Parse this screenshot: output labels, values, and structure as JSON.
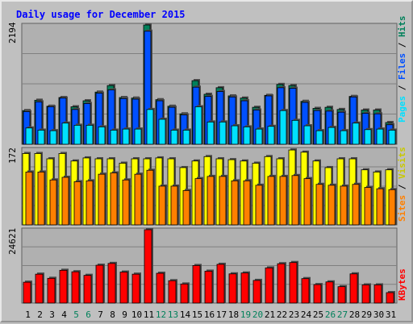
{
  "chart_data": [
    {
      "type": "bar",
      "title": "Daily usage for December 2015",
      "panel": "top",
      "y_tick_label": "2194",
      "ylim": [
        0,
        2194
      ],
      "categories": [
        "1",
        "2",
        "3",
        "4",
        "5",
        "6",
        "7",
        "8",
        "9",
        "10",
        "11",
        "12",
        "13",
        "14",
        "15",
        "16",
        "17",
        "18",
        "19",
        "20",
        "21",
        "22",
        "23",
        "24",
        "25",
        "26",
        "27",
        "28",
        "29",
        "30",
        "31"
      ],
      "series": [
        {
          "name": "Hits",
          "values": [
            620,
            810,
            700,
            860,
            690,
            800,
            960,
            1080,
            860,
            850,
            2194,
            820,
            700,
            560,
            1170,
            920,
            1040,
            890,
            850,
            680,
            900,
            1100,
            1080,
            790,
            660,
            680,
            640,
            880,
            630,
            630,
            400
          ]
        },
        {
          "name": "Files",
          "values": [
            600,
            780,
            690,
            850,
            640,
            750,
            940,
            1000,
            840,
            830,
            2080,
            800,
            680,
            540,
            1050,
            880,
            970,
            870,
            800,
            630,
            890,
            1040,
            1030,
            770,
            620,
            610,
            590,
            870,
            570,
            560,
            360
          ]
        },
        {
          "name": "Pages",
          "values": [
            300,
            260,
            250,
            390,
            350,
            350,
            320,
            260,
            280,
            280,
            640,
            460,
            260,
            260,
            690,
            410,
            410,
            340,
            320,
            280,
            330,
            620,
            440,
            340,
            250,
            310,
            250,
            390,
            270,
            280,
            260
          ]
        }
      ],
      "legend": [
        "Pages",
        "Files",
        "Hits"
      ],
      "legend_colors": [
        "#00e0ff",
        "#0050ff",
        "#00805a"
      ]
    },
    {
      "type": "bar",
      "panel": "middle",
      "y_tick_label": "172",
      "ylim": [
        0,
        172
      ],
      "categories": [
        "1",
        "2",
        "3",
        "4",
        "5",
        "6",
        "7",
        "8",
        "9",
        "10",
        "11",
        "12",
        "13",
        "14",
        "15",
        "16",
        "17",
        "18",
        "19",
        "20",
        "21",
        "22",
        "23",
        "24",
        "25",
        "26",
        "27",
        "28",
        "29",
        "30",
        "31"
      ],
      "series": [
        {
          "name": "Visits",
          "values": [
            162,
            162,
            150,
            162,
            145,
            152,
            150,
            150,
            140,
            150,
            150,
            152,
            150,
            130,
            145,
            155,
            150,
            148,
            145,
            140,
            155,
            150,
            170,
            165,
            145,
            130,
            150,
            150,
            125,
            120,
            125
          ]
        },
        {
          "name": "Sites",
          "values": [
            120,
            120,
            102,
            108,
            98,
            100,
            115,
            118,
            102,
            115,
            124,
            88,
            88,
            78,
            105,
            110,
            110,
            100,
            100,
            90,
            110,
            110,
            112,
            105,
            92,
            90,
            88,
            92,
            85,
            82,
            80
          ]
        }
      ],
      "legend": [
        "Sites",
        "Visits"
      ],
      "legend_colors": [
        "#ff8000",
        "#ffff00"
      ]
    },
    {
      "type": "bar",
      "panel": "bottom",
      "y_tick_label": "24621",
      "ylim": [
        0,
        24621
      ],
      "categories": [
        "1",
        "2",
        "3",
        "4",
        "5",
        "6",
        "7",
        "8",
        "9",
        "10",
        "11",
        "12",
        "13",
        "14",
        "15",
        "16",
        "17",
        "18",
        "19",
        "20",
        "21",
        "22",
        "23",
        "24",
        "25",
        "26",
        "27",
        "28",
        "29",
        "30",
        "31"
      ],
      "series": [
        {
          "name": "KBytes",
          "values": [
            7000,
            9700,
            8300,
            11000,
            10500,
            9300,
            12700,
            13300,
            10400,
            9700,
            24621,
            10000,
            7500,
            6400,
            12600,
            10700,
            13000,
            9800,
            10100,
            7600,
            11800,
            13200,
            13600,
            8200,
            6200,
            7100,
            5500,
            9800,
            6100,
            6100,
            3500
          ]
        }
      ],
      "legend": [
        "KBytes"
      ],
      "legend_colors": [
        "#ff0000"
      ]
    }
  ],
  "weekend_days": [
    "5",
    "6",
    "12",
    "13",
    "19",
    "20",
    "26",
    "27"
  ],
  "colors": {
    "background": "#c0c0c0",
    "plot_bg": "#b0b0b0",
    "title": "#0000ff",
    "weekend_label": "#00805a",
    "weekday_label": "#000000",
    "grid": "#808080"
  }
}
